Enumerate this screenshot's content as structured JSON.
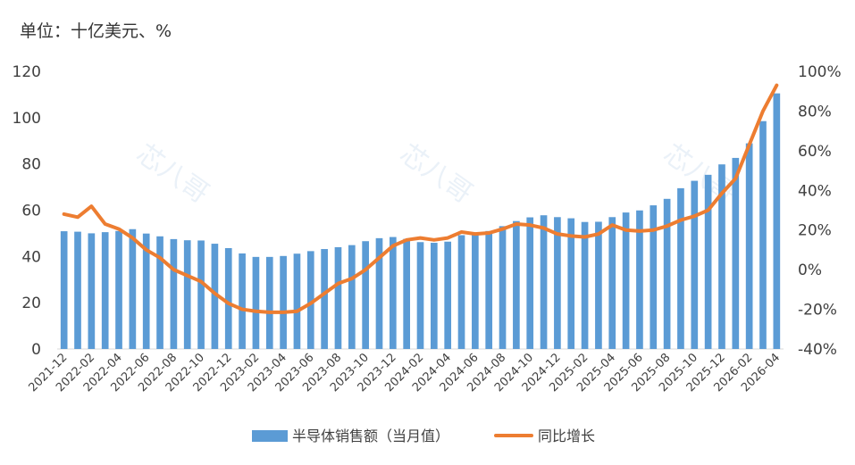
{
  "unit_note": "单位：十亿美元、%",
  "watermark_text": "芯八哥",
  "colors": {
    "bar": "#5b9bd5",
    "line": "#ed7d31",
    "axis": "#d9d9d9",
    "text": "#404040"
  },
  "chart_data": {
    "type": "bar",
    "categories": [
      "2021-12",
      "2022-01",
      "2022-02",
      "2022-03",
      "2022-04",
      "2022-05",
      "2022-06",
      "2022-07",
      "2022-08",
      "2022-09",
      "2022-10",
      "2022-11",
      "2022-12",
      "2023-01",
      "2023-02",
      "2023-03",
      "2023-04",
      "2023-05",
      "2023-06",
      "2023-07",
      "2023-08",
      "2023-09",
      "2023-10",
      "2023-11",
      "2023-12",
      "2024-01",
      "2024-02",
      "2024-03",
      "2024-04",
      "2024-05",
      "2024-06",
      "2024-07",
      "2024-08",
      "2024-09",
      "2024-10",
      "2024-11",
      "2024-12",
      "2025-01",
      "2025-02",
      "2025-03",
      "2025-04",
      "2025-05",
      "2025-06",
      "2025-07",
      "2025-08",
      "2025-09",
      "2025-10",
      "2025-11",
      "2025-12",
      "2026-01",
      "2026-02",
      "2026-03",
      "2026-04"
    ],
    "tick_labels": [
      "2021-12",
      "2022-02",
      "2022-04",
      "2022-06",
      "2022-08",
      "2022-10",
      "2022-12",
      "2023-02",
      "2023-04",
      "2023-06",
      "2023-08",
      "2023-10",
      "2023-12",
      "2024-02",
      "2024-04",
      "2024-06",
      "2024-08",
      "2024-10",
      "2024-12",
      "2025-02",
      "2025-04",
      "2025-06",
      "2025-08",
      "2025-10",
      "2025-12",
      "2026-02",
      "2026-04"
    ],
    "series": [
      {
        "name": "半导体销售额（当月值）",
        "axis": "left",
        "values": [
          50.9,
          50.7,
          50.0,
          50.5,
          51.0,
          51.8,
          49.9,
          48.7,
          47.5,
          47.0,
          46.9,
          45.5,
          43.6,
          41.3,
          39.8,
          39.8,
          40.2,
          41.2,
          42.3,
          43.2,
          44.0,
          44.9,
          46.6,
          47.9,
          48.4,
          47.6,
          46.2,
          45.9,
          46.4,
          49.2,
          50.3,
          51.0,
          53.1,
          55.3,
          56.9,
          57.8,
          57.0,
          56.5,
          54.9,
          55.0,
          57.0,
          59.0,
          59.9,
          62.1,
          64.9,
          69.5,
          72.7,
          75.3,
          79.8,
          82.6,
          88.9,
          98.5,
          110.5
        ]
      },
      {
        "name": "同比增长",
        "axis": "right",
        "values": [
          28,
          26.5,
          32,
          23,
          20.5,
          16,
          10,
          6,
          0,
          -3,
          -6,
          -12,
          -17,
          -20,
          -21,
          -21.5,
          -21.5,
          -21,
          -17,
          -12,
          -7,
          -4.5,
          0,
          6,
          12,
          15,
          16,
          15,
          16,
          19,
          18,
          18.5,
          20.5,
          23,
          22.5,
          21,
          18,
          17,
          16.5,
          18,
          22.5,
          20,
          19.5,
          20,
          22,
          25,
          27,
          30,
          38.5,
          46,
          63,
          80,
          93
        ]
      }
    ],
    "y_left": {
      "min": 0,
      "max": 120,
      "ticks": [
        "0",
        "20",
        "40",
        "60",
        "80",
        "100",
        "120"
      ]
    },
    "y_right": {
      "min": -40,
      "max": 100,
      "ticks": [
        "-40%",
        "-20%",
        "0%",
        "20%",
        "40%",
        "60%",
        "80%",
        "100%"
      ]
    },
    "legend": {
      "position": "bottom",
      "bar_label": "半导体销售额（当月值）",
      "line_label": "同比增长"
    },
    "grid": false
  }
}
